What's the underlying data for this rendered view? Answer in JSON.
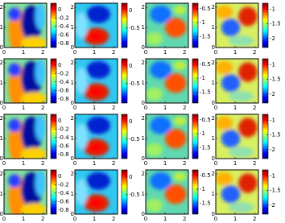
{
  "chart_data": [
    {
      "type": "heatmap",
      "colormap": "jet",
      "xlim": [
        0,
        2.2
      ],
      "ylim": [
        0,
        2.2
      ],
      "xticks": [
        0,
        1,
        2
      ],
      "yticks": [
        0,
        1,
        2
      ],
      "clim": [
        -0.9,
        0.15
      ],
      "cticks": [
        0,
        -0.2,
        -0.4,
        -0.6,
        -0.8
      ]
    },
    {
      "type": "heatmap",
      "colormap": "jet",
      "xlim": [
        0,
        2.2
      ],
      "ylim": [
        0,
        2.2
      ],
      "xticks": [
        0,
        1,
        2
      ],
      "yticks": [
        0,
        1,
        2
      ],
      "clim": [
        -1.05,
        0.2
      ],
      "cticks": [
        0,
        -0.5
      ]
    },
    {
      "type": "heatmap",
      "colormap": "jet",
      "xlim": [
        0,
        2.2
      ],
      "ylim": [
        0,
        2.2
      ],
      "xticks": [
        0,
        1,
        2
      ],
      "yticks": [
        0,
        1,
        2
      ],
      "clim": [
        -1.9,
        -0.3
      ],
      "cticks": [
        -0.5,
        -1,
        -1.5
      ]
    },
    {
      "type": "heatmap",
      "colormap": "jet",
      "xlim": [
        0,
        2.2
      ],
      "ylim": [
        0,
        2.2
      ],
      "xticks": [
        0,
        1,
        2
      ],
      "yticks": [
        0,
        1,
        2
      ],
      "clim": [
        -2.3,
        -0.8
      ],
      "cticks": [
        -1,
        -1.5,
        -2
      ]
    },
    {
      "type": "heatmap",
      "colormap": "jet",
      "xlim": [
        0,
        2.2
      ],
      "ylim": [
        0,
        2.2
      ],
      "xticks": [
        0,
        1,
        2
      ],
      "yticks": [
        0,
        1,
        2
      ],
      "clim": [
        -0.9,
        0.15
      ],
      "cticks": [
        0,
        -0.2,
        -0.4,
        -0.6,
        -0.8
      ]
    },
    {
      "type": "heatmap",
      "colormap": "jet",
      "xlim": [
        0,
        2.2
      ],
      "ylim": [
        0,
        2.2
      ],
      "xticks": [
        0,
        1,
        2
      ],
      "yticks": [
        0,
        1,
        2
      ],
      "clim": [
        -1.05,
        0.2
      ],
      "cticks": [
        0,
        -0.5
      ]
    },
    {
      "type": "heatmap",
      "colormap": "jet",
      "xlim": [
        0,
        2.2
      ],
      "ylim": [
        0,
        2.2
      ],
      "xticks": [
        0,
        1,
        2
      ],
      "yticks": [
        0,
        1,
        2
      ],
      "clim": [
        -1.9,
        -0.3
      ],
      "cticks": [
        -0.5,
        -1,
        -1.5
      ]
    },
    {
      "type": "heatmap",
      "colormap": "jet",
      "xlim": [
        0,
        2.2
      ],
      "ylim": [
        0,
        2.2
      ],
      "xticks": [
        0,
        1,
        2
      ],
      "yticks": [
        0,
        1,
        2
      ],
      "clim": [
        -2.3,
        -0.8
      ],
      "cticks": [
        -1,
        -1.5,
        -2
      ]
    },
    {
      "type": "heatmap",
      "colormap": "jet",
      "xlim": [
        0,
        2.2
      ],
      "ylim": [
        0,
        2.2
      ],
      "xticks": [
        0,
        1,
        2
      ],
      "yticks": [
        0,
        1,
        2
      ],
      "clim": [
        -0.9,
        0.15
      ],
      "cticks": [
        0,
        -0.2,
        -0.4,
        -0.6,
        -0.8
      ]
    },
    {
      "type": "heatmap",
      "colormap": "jet",
      "xlim": [
        0,
        2.2
      ],
      "ylim": [
        0,
        2.2
      ],
      "xticks": [
        0,
        1,
        2
      ],
      "yticks": [
        0,
        1,
        2
      ],
      "clim": [
        -1.05,
        0.2
      ],
      "cticks": [
        0,
        -0.5
      ]
    },
    {
      "type": "heatmap",
      "colormap": "jet",
      "xlim": [
        0,
        2.2
      ],
      "ylim": [
        0,
        2.2
      ],
      "xticks": [
        0,
        1,
        2
      ],
      "yticks": [
        0,
        1,
        2
      ],
      "clim": [
        -1.9,
        -0.3
      ],
      "cticks": [
        -0.5,
        -1,
        -1.5
      ]
    },
    {
      "type": "heatmap",
      "colormap": "jet",
      "xlim": [
        0,
        2.2
      ],
      "ylim": [
        0,
        2.2
      ],
      "xticks": [
        0,
        1,
        2
      ],
      "yticks": [
        0,
        1,
        2
      ],
      "clim": [
        -2.3,
        -0.8
      ],
      "cticks": [
        -1,
        -1.5,
        -2
      ]
    },
    {
      "type": "heatmap",
      "colormap": "jet",
      "xlim": [
        0,
        2.2
      ],
      "ylim": [
        0,
        2.2
      ],
      "xticks": [
        0,
        1,
        2
      ],
      "yticks": [
        0,
        1,
        2
      ],
      "clim": [
        -0.9,
        0.15
      ],
      "cticks": [
        0,
        -0.2,
        -0.4,
        -0.6,
        -0.8
      ]
    },
    {
      "type": "heatmap",
      "colormap": "jet",
      "xlim": [
        0,
        2.2
      ],
      "ylim": [
        0,
        2.2
      ],
      "xticks": [
        0,
        1,
        2
      ],
      "yticks": [
        0,
        1,
        2
      ],
      "clim": [
        -1.05,
        0.2
      ],
      "cticks": [
        0,
        -0.5
      ]
    },
    {
      "type": "heatmap",
      "colormap": "jet",
      "xlim": [
        0,
        2.2
      ],
      "ylim": [
        0,
        2.2
      ],
      "xticks": [
        0,
        1,
        2
      ],
      "yticks": [
        0,
        1,
        2
      ],
      "clim": [
        -1.9,
        -0.3
      ],
      "cticks": [
        -0.5,
        -1,
        -1.5
      ]
    },
    {
      "type": "heatmap",
      "colormap": "jet",
      "xlim": [
        0,
        2.2
      ],
      "ylim": [
        0,
        2.2
      ],
      "xticks": [
        0,
        1,
        2
      ],
      "yticks": [
        0,
        1,
        2
      ],
      "clim": [
        -2.3,
        -0.8
      ],
      "cticks": [
        -1,
        -1.5,
        -2
      ]
    }
  ]
}
